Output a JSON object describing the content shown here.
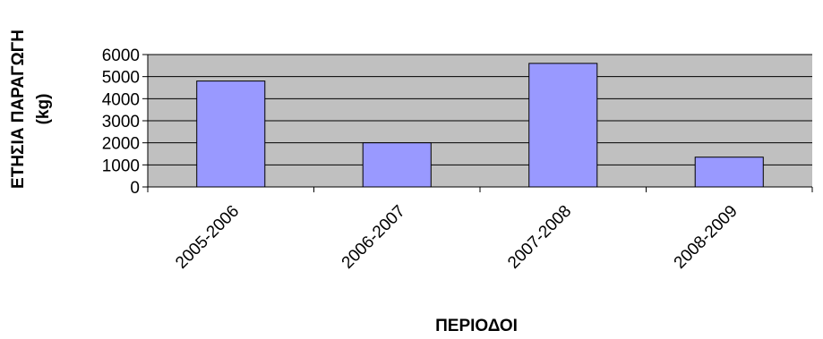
{
  "chart_data": {
    "type": "bar",
    "categories": [
      "2005-2006",
      "2006-2007",
      "2007-2008",
      "2008-2009"
    ],
    "values": [
      4800,
      2000,
      5600,
      1350
    ],
    "xlabel": "ΠΕΡΙΟΔΟΙ",
    "ylabel_line1": "ΕΤΗΣΙΑ ΠΑΡΑΓΩΓΗ",
    "ylabel_line2": "(kg)",
    "yticks": [
      "0",
      "1000",
      "2000",
      "3000",
      "4000",
      "5000",
      "6000"
    ],
    "ylim": [
      0,
      6000
    ],
    "grid": true,
    "legend": "none",
    "colors": {
      "bar_fill": "#9999FF",
      "plot_background": "#C0C0C0",
      "gridline": "#000000",
      "axis": "#000000"
    }
  }
}
